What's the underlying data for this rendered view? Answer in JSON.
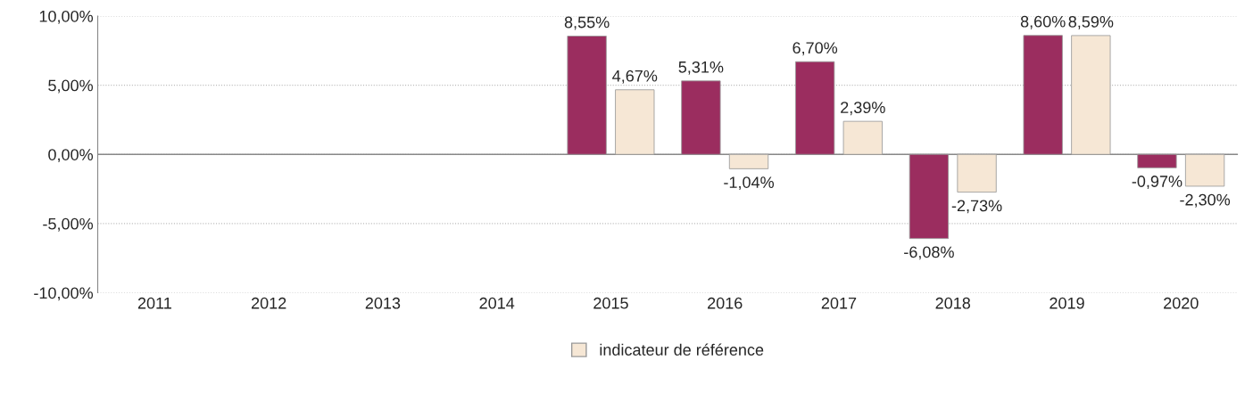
{
  "chart_data": {
    "type": "bar",
    "categories": [
      "2011",
      "2012",
      "2013",
      "2014",
      "2015",
      "2016",
      "2017",
      "2018",
      "2019",
      "2020"
    ],
    "series": [
      {
        "color": "#9b2d5f",
        "values": [
          null,
          null,
          null,
          null,
          8.55,
          5.31,
          6.7,
          -6.08,
          8.6,
          -0.97
        ],
        "value_labels": [
          null,
          null,
          null,
          null,
          "8,55%",
          "5,31%",
          "6,70%",
          "-6,08%",
          "8,60%",
          "-0,97%"
        ]
      },
      {
        "name": "indicateur de référence",
        "color": "#f6e7d5",
        "values": [
          null,
          null,
          null,
          null,
          4.67,
          -1.04,
          2.39,
          -2.73,
          8.59,
          -2.3
        ],
        "value_labels": [
          null,
          null,
          null,
          null,
          "4,67%",
          "-1,04%",
          "2,39%",
          "-2,73%",
          "8,59%",
          "-2,30%"
        ]
      }
    ],
    "ylim": [
      -10,
      10
    ],
    "yticks": [
      {
        "value": -10,
        "label": "-10,00%"
      },
      {
        "value": -5,
        "label": "-5,00%"
      },
      {
        "value": 0,
        "label": "0,00%"
      },
      {
        "value": 5,
        "label": "5,00%"
      },
      {
        "value": 10,
        "label": "10,00%"
      }
    ],
    "grid": "y",
    "legend": "bottom"
  }
}
